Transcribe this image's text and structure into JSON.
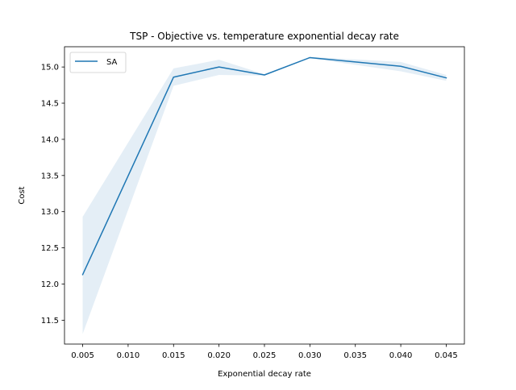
{
  "chart_data": {
    "type": "line",
    "title": "TSP - Objective vs. temperature exponential decay rate",
    "xlabel": "Exponential decay rate",
    "ylabel": "Cost",
    "xlim": [
      0.003,
      0.047
    ],
    "ylim": [
      11.17,
      15.28
    ],
    "xticks": [
      "0.005",
      "0.010",
      "0.015",
      "0.020",
      "0.025",
      "0.030",
      "0.035",
      "0.040",
      "0.045"
    ],
    "yticks": [
      "11.5",
      "12.0",
      "12.5",
      "13.0",
      "13.5",
      "14.0",
      "14.5",
      "15.0"
    ],
    "grid": false,
    "legend_position": "top-left",
    "series": [
      {
        "name": "SA",
        "color": "#1f77b4",
        "band_color": "#1f77b4",
        "x": [
          0.005,
          0.015,
          0.02,
          0.025,
          0.03,
          0.04,
          0.045
        ],
        "values": [
          12.13,
          14.86,
          15.0,
          14.89,
          15.13,
          15.01,
          14.85
        ],
        "lower": [
          11.31,
          14.74,
          14.89,
          14.88,
          15.12,
          14.94,
          14.81
        ],
        "upper": [
          12.93,
          14.98,
          15.1,
          14.9,
          15.14,
          15.07,
          14.89
        ]
      }
    ]
  }
}
